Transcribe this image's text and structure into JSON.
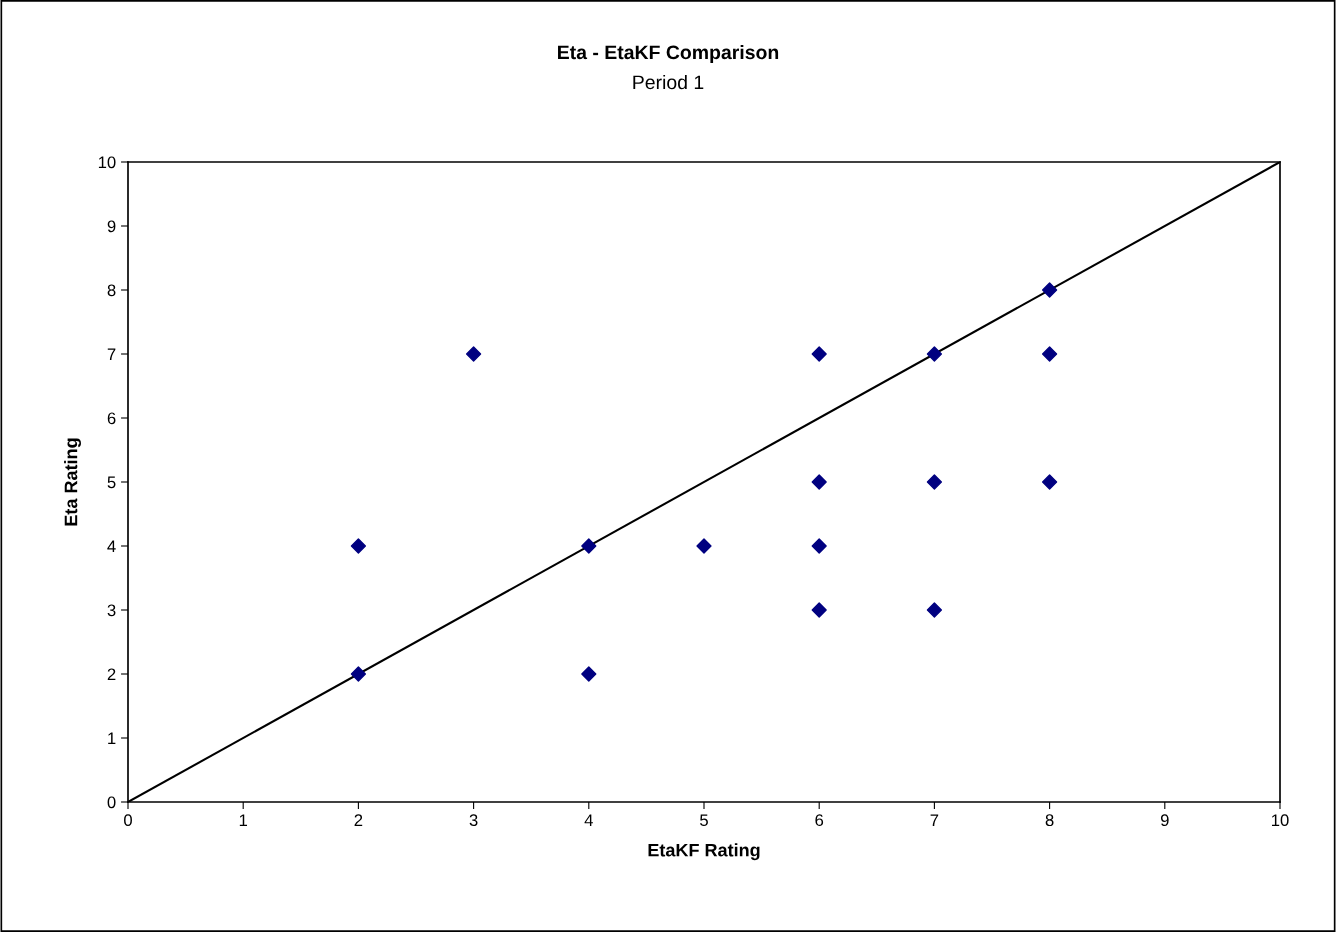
{
  "chart_data": {
    "type": "scatter",
    "title": "Eta - EtaKF Comparison",
    "subtitle": "Period 1",
    "xlabel": "EtaKF Rating",
    "ylabel": "Eta Rating",
    "xlim": [
      0,
      10
    ],
    "ylim": [
      0,
      10
    ],
    "xticks": [
      0,
      1,
      2,
      3,
      4,
      5,
      6,
      7,
      8,
      9,
      10
    ],
    "yticks": [
      0,
      1,
      2,
      3,
      4,
      5,
      6,
      7,
      8,
      9,
      10
    ],
    "grid": false,
    "marker": "diamond",
    "series": [
      {
        "type": "line",
        "color": "#000000",
        "x": [
          0,
          10
        ],
        "values": [
          0,
          10
        ],
        "marker": "none",
        "line_style": "solid"
      },
      {
        "color": "#000080",
        "x": [
          2,
          2,
          3,
          4,
          4,
          5,
          6,
          6,
          6,
          6,
          7,
          7,
          7,
          8,
          8,
          8
        ],
        "values": [
          4,
          2,
          7,
          4,
          2,
          4,
          7,
          5,
          4,
          3,
          7,
          5,
          3,
          8,
          7,
          5
        ]
      }
    ]
  }
}
